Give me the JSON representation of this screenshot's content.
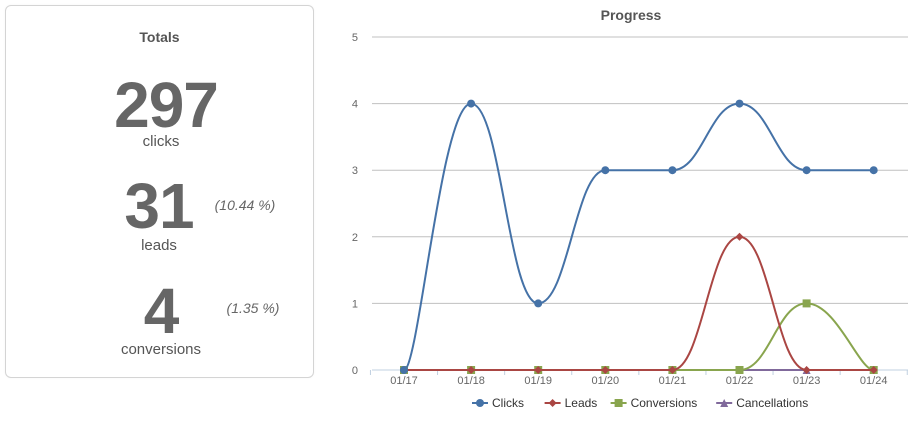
{
  "totals": {
    "title": "Totals",
    "clicks": {
      "value": "297",
      "label": "clicks"
    },
    "leads": {
      "value": "31",
      "label": "leads",
      "pct": "(10.44 %)"
    },
    "conversions": {
      "value": "4",
      "label": "conversions",
      "pct": "(1.35 %)"
    }
  },
  "chart_data": {
    "type": "line",
    "title": "Progress",
    "categories": [
      "01/17",
      "01/18",
      "01/19",
      "01/20",
      "01/21",
      "01/22",
      "01/23",
      "01/24"
    ],
    "ylim": [
      0,
      5
    ],
    "yticks": [
      "0",
      "1",
      "2",
      "3",
      "4",
      "5"
    ],
    "grid": true,
    "legend_position": "bottom",
    "series": [
      {
        "name": "Clicks",
        "values": [
          0,
          4,
          1,
          3,
          3,
          4,
          3,
          3
        ],
        "color": "#4572a7",
        "marker": "circle"
      },
      {
        "name": "Leads",
        "values": [
          0,
          0,
          0,
          0,
          0,
          2,
          0,
          0
        ],
        "color": "#aa4643",
        "marker": "diamond"
      },
      {
        "name": "Conversions",
        "values": [
          0,
          0,
          0,
          0,
          0,
          0,
          1,
          0
        ],
        "color": "#89a54e",
        "marker": "square"
      },
      {
        "name": "Cancellations",
        "values": [
          0,
          0,
          0,
          0,
          0,
          0,
          0,
          0
        ],
        "color": "#80699b",
        "marker": "triangle"
      }
    ]
  }
}
